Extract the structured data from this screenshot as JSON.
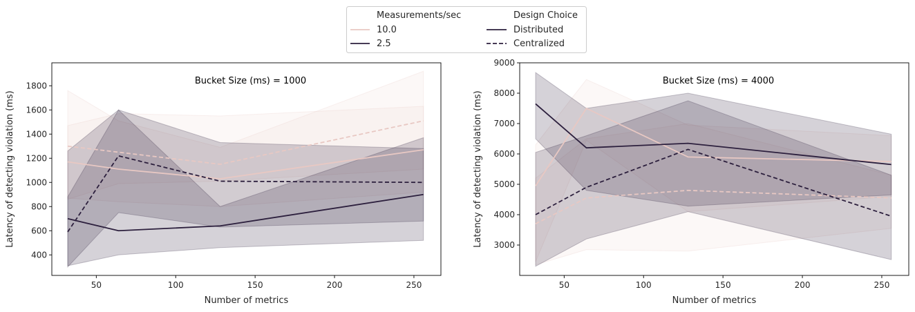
{
  "legend": {
    "hue_title": "Measurements/sec",
    "style_title": "Design Choice",
    "hue_items": [
      {
        "label": "10.0",
        "color": "#e8c8c3"
      },
      {
        "label": "2.5",
        "color": "#2c1f3d"
      }
    ],
    "style_items": [
      {
        "label": "Distributed",
        "dash": "solid"
      },
      {
        "label": "Centralized",
        "dash": "dashed"
      }
    ]
  },
  "chart_data": [
    {
      "type": "line",
      "title": "Bucket Size (ms) = 1000",
      "xlabel": "Number of metrics",
      "ylabel": "Latency of detecting violation (ms)",
      "xlim": [
        22,
        267
      ],
      "ylim": [
        230,
        1990
      ],
      "xticks": [
        50,
        100,
        150,
        200,
        250
      ],
      "yticks": [
        400,
        600,
        800,
        1000,
        1200,
        1400,
        1600,
        1800
      ],
      "x": [
        32,
        64,
        128,
        256
      ],
      "series": [
        {
          "rate": "10.0",
          "design": "Distributed",
          "color": "#e8c8c3",
          "dashed": false,
          "values": [
            1170,
            1110,
            1030,
            1270
          ],
          "ci_low": [
            870,
            840,
            800,
            920
          ],
          "ci_high": [
            1470,
            1570,
            1550,
            1630
          ]
        },
        {
          "rate": "10.0",
          "design": "Centralized",
          "color": "#e8c8c3",
          "dashed": true,
          "values": [
            1300,
            1250,
            1150,
            1510
          ],
          "ci_low": [
            860,
            990,
            1010,
            1110
          ],
          "ci_high": [
            1760,
            1510,
            1290,
            1920
          ]
        },
        {
          "rate": "2.5",
          "design": "Distributed",
          "color": "#2c1f3d",
          "dashed": false,
          "values": [
            700,
            600,
            640,
            900
          ],
          "ci_low": [
            310,
            400,
            460,
            520
          ],
          "ci_high": [
            1260,
            1600,
            800,
            1370
          ]
        },
        {
          "rate": "2.5",
          "design": "Centralized",
          "color": "#2c1f3d",
          "dashed": true,
          "values": [
            590,
            1220,
            1010,
            1000
          ],
          "ci_low": [
            300,
            750,
            630,
            680
          ],
          "ci_high": [
            880,
            1600,
            1330,
            1280
          ]
        }
      ]
    },
    {
      "type": "line",
      "title": "Bucket Size (ms) = 4000",
      "xlabel": "Number of metrics",
      "ylabel": "Latency of detecting violation (ms)",
      "xlim": [
        22,
        267
      ],
      "ylim": [
        2000,
        9000
      ],
      "xticks": [
        50,
        100,
        150,
        200,
        250
      ],
      "yticks": [
        3000,
        4000,
        5000,
        6000,
        7000,
        8000,
        9000
      ],
      "x": [
        32,
        64,
        128,
        256
      ],
      "series": [
        {
          "rate": "10.0",
          "design": "Distributed",
          "color": "#e8c8c3",
          "dashed": false,
          "values": [
            4950,
            7500,
            5900,
            5750
          ],
          "ci_low": [
            2450,
            6450,
            4100,
            4600
          ],
          "ci_high": [
            6300,
            8450,
            6950,
            6600
          ]
        },
        {
          "rate": "10.0",
          "design": "Centralized",
          "color": "#e8c8c3",
          "dashed": true,
          "values": [
            3700,
            4550,
            4800,
            4550
          ],
          "ci_low": [
            2350,
            2850,
            2800,
            3550
          ],
          "ci_high": [
            5200,
            6500,
            7000,
            5300
          ]
        },
        {
          "rate": "2.5",
          "design": "Distributed",
          "color": "#2c1f3d",
          "dashed": false,
          "values": [
            7650,
            6200,
            6350,
            5650
          ],
          "ci_low": [
            6500,
            4800,
            4280,
            4650
          ],
          "ci_high": [
            8680,
            7500,
            8000,
            6650
          ]
        },
        {
          "rate": "2.5",
          "design": "Centralized",
          "color": "#2c1f3d",
          "dashed": true,
          "values": [
            4000,
            4900,
            6150,
            3950
          ],
          "ci_low": [
            2300,
            3200,
            4100,
            2520
          ],
          "ci_high": [
            6050,
            6600,
            7750,
            5300
          ]
        }
      ]
    }
  ]
}
